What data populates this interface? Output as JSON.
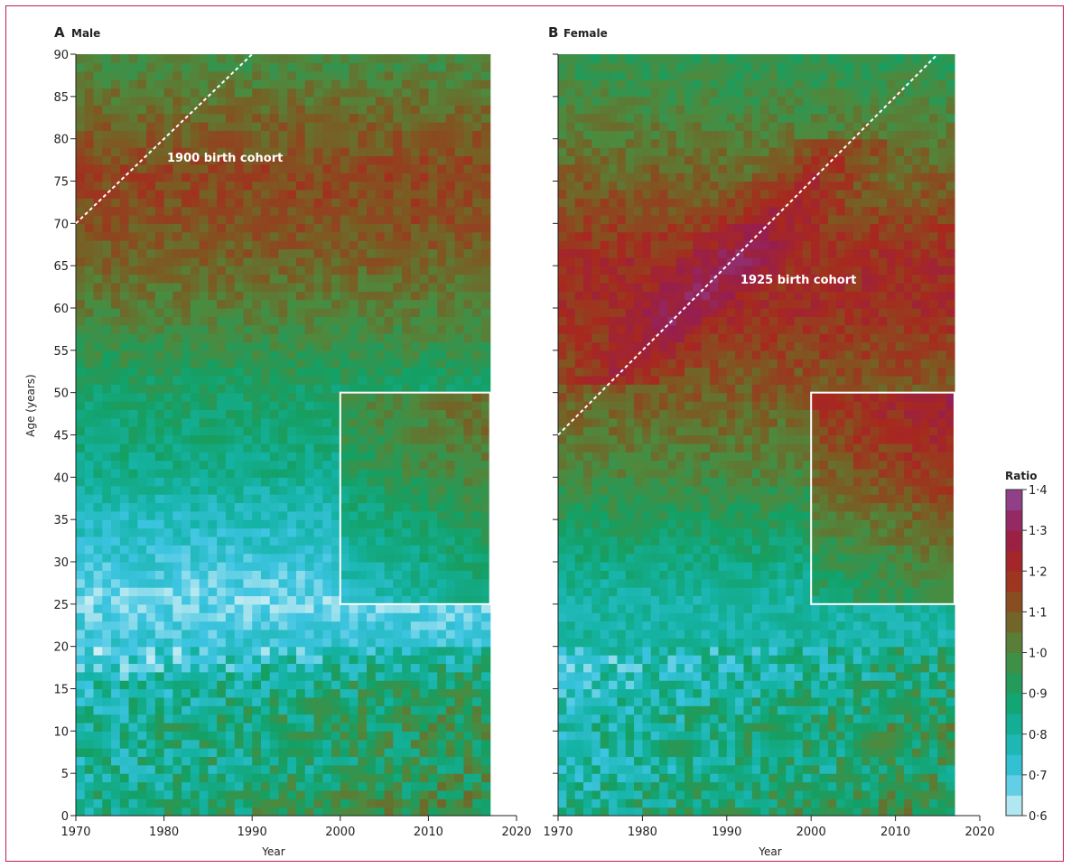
{
  "chart_data": {
    "type": "heatmap",
    "panels": [
      {
        "letter": "A",
        "title": "Male",
        "xlabel": "Year",
        "ylabel": "Age (years)",
        "xlim": [
          1970,
          2020
        ],
        "ylim": [
          0,
          90
        ],
        "x_ticks": [
          1970,
          1980,
          1990,
          2000,
          2010,
          2020
        ],
        "y_ticks": [
          0,
          5,
          10,
          15,
          20,
          25,
          30,
          35,
          40,
          45,
          50,
          55,
          60,
          65,
          70,
          75,
          80,
          85,
          90
        ],
        "data_year_range": [
          1970,
          2017
        ],
        "data_age_range": [
          0,
          90
        ],
        "cohort_label": "1900 birth cohort",
        "cohort_birth_year": 1900,
        "cohort_line": {
          "from": {
            "year": 1970,
            "age": 70
          },
          "to": {
            "year": 1990,
            "age": 90
          }
        },
        "highlight_box": {
          "year_range": [
            2000,
            2017
          ],
          "age_range": [
            25,
            50
          ]
        },
        "approx_ratio_profile_by_age": [
          {
            "age": 0,
            "ratio": 0.93
          },
          {
            "age": 5,
            "ratio": 0.88
          },
          {
            "age": 10,
            "ratio": 0.9
          },
          {
            "age": 15,
            "ratio": 0.85
          },
          {
            "age": 20,
            "ratio": 0.72
          },
          {
            "age": 25,
            "ratio": 0.66
          },
          {
            "age": 30,
            "ratio": 0.72
          },
          {
            "age": 35,
            "ratio": 0.76
          },
          {
            "age": 40,
            "ratio": 0.84
          },
          {
            "age": 45,
            "ratio": 0.87
          },
          {
            "age": 50,
            "ratio": 0.9
          },
          {
            "age": 55,
            "ratio": 0.97
          },
          {
            "age": 60,
            "ratio": 1.03
          },
          {
            "age": 65,
            "ratio": 1.08
          },
          {
            "age": 70,
            "ratio": 1.12
          },
          {
            "age": 75,
            "ratio": 1.14
          },
          {
            "age": 80,
            "ratio": 1.1
          },
          {
            "age": 85,
            "ratio": 1.04
          },
          {
            "age": 90,
            "ratio": 0.97
          }
        ]
      },
      {
        "letter": "B",
        "title": "Female",
        "xlabel": "Year",
        "ylabel": "",
        "xlim": [
          1970,
          2020
        ],
        "ylim": [
          0,
          90
        ],
        "x_ticks": [
          1970,
          1980,
          1990,
          2000,
          2010,
          2020
        ],
        "y_ticks": [
          0,
          5,
          10,
          15,
          20,
          25,
          30,
          35,
          40,
          45,
          50,
          55,
          60,
          65,
          70,
          75,
          80,
          85,
          90
        ],
        "data_year_range": [
          1970,
          2017
        ],
        "data_age_range": [
          0,
          90
        ],
        "cohort_label": "1925 birth cohort",
        "cohort_birth_year": 1925,
        "cohort_line": {
          "from": {
            "year": 1970,
            "age": 45
          },
          "to": {
            "year": 2015,
            "age": 90
          }
        },
        "highlight_box": {
          "year_range": [
            2000,
            2017
          ],
          "age_range": [
            25,
            50
          ]
        },
        "approx_ratio_profile_by_age": [
          {
            "age": 0,
            "ratio": 0.92
          },
          {
            "age": 5,
            "ratio": 0.85
          },
          {
            "age": 10,
            "ratio": 0.88
          },
          {
            "age": 15,
            "ratio": 0.82
          },
          {
            "age": 20,
            "ratio": 0.8
          },
          {
            "age": 25,
            "ratio": 0.8
          },
          {
            "age": 30,
            "ratio": 0.86
          },
          {
            "age": 35,
            "ratio": 0.93
          },
          {
            "age": 40,
            "ratio": 1.0
          },
          {
            "age": 45,
            "ratio": 1.05
          },
          {
            "age": 50,
            "ratio": 1.1
          },
          {
            "age": 55,
            "ratio": 1.15
          },
          {
            "age": 60,
            "ratio": 1.2
          },
          {
            "age": 65,
            "ratio": 1.2
          },
          {
            "age": 70,
            "ratio": 1.14
          },
          {
            "age": 75,
            "ratio": 1.08
          },
          {
            "age": 80,
            "ratio": 1.03
          },
          {
            "age": 85,
            "ratio": 0.98
          },
          {
            "age": 90,
            "ratio": 0.93
          }
        ]
      }
    ],
    "colorbar": {
      "title": "Ratio",
      "range": [
        0.6,
        1.4
      ],
      "ticks": [
        "0·6",
        "0·7",
        "0·8",
        "0·9",
        "1·0",
        "1·1",
        "1·2",
        "1·3",
        "1·4"
      ],
      "tick_values": [
        0.6,
        0.7,
        0.8,
        0.9,
        1.0,
        1.1,
        1.2,
        1.3,
        1.4
      ],
      "colors": [
        "#d8f2f5",
        "#3cc4e1",
        "#14b3a5",
        "#14a064",
        "#4d8a3e",
        "#7d5a21",
        "#a8281e",
        "#961e50",
        "#8e4a9c"
      ]
    },
    "colors": {
      "frame": "#c2185b",
      "cohort_line": "#ffffff",
      "highlight_box": "#ffffff"
    }
  }
}
